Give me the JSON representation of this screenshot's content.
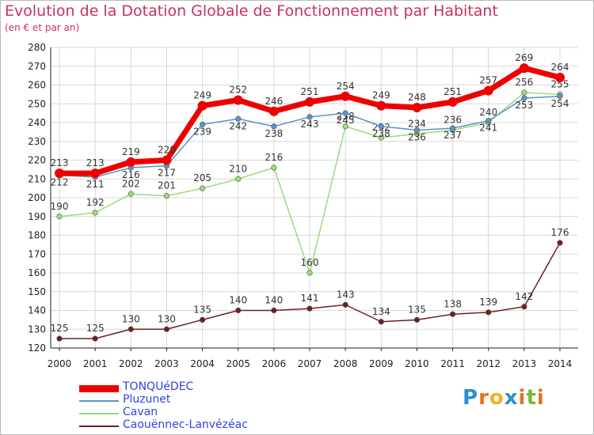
{
  "title": "Evolution de la Dotation Globale de Fonctionnement par Habitant",
  "subtitle": "(en € et par an)",
  "logo_text": "Proxiti",
  "colors": {
    "title": "#c8325a",
    "axis": "#222222",
    "grid": "#d8d8d8",
    "legend_text": "#3344dd",
    "logo": [
      "#2a8fd4",
      "#e8701e",
      "#f2b01e",
      "#2a8fd4",
      "#e8701e",
      "#7ab830",
      "#e8701e"
    ]
  },
  "chart_data": {
    "type": "line",
    "title": "Evolution de la Dotation Globale de Fonctionnement par Habitant",
    "subtitle": "(en € et par an)",
    "xlabel": "",
    "ylabel": "",
    "ylim": [
      120,
      280
    ],
    "ytick_step": 10,
    "grid": true,
    "legend_position": "bottom-left",
    "categories": [
      "2000",
      "2001",
      "2002",
      "2003",
      "2004",
      "2005",
      "2006",
      "2007",
      "2008",
      "2009",
      "2010",
      "2011",
      "2012",
      "2013",
      "2014"
    ],
    "series": [
      {
        "name": "Caouënnec-Lanvézéac",
        "color": "#6e1f22",
        "values": [
          125,
          125,
          130,
          130,
          135,
          140,
          140,
          141,
          143,
          134,
          135,
          138,
          139,
          142,
          176
        ]
      },
      {
        "name": "Cavan",
        "color": "#99dd77",
        "values": [
          190,
          192,
          202,
          201,
          205,
          210,
          216,
          160,
          238,
          232,
          234,
          236,
          240,
          256,
          255
        ]
      },
      {
        "name": "Pluzunet",
        "color": "#5b93cc",
        "values": [
          212,
          211,
          216,
          217,
          239,
          242,
          238,
          243,
          245,
          238,
          236,
          237,
          241,
          253,
          254
        ]
      },
      {
        "name": "TONQUéDEC",
        "color": "#ee0000",
        "values": [
          213,
          213,
          219,
          220,
          249,
          252,
          246,
          251,
          254,
          249,
          248,
          251,
          257,
          269,
          264
        ]
      }
    ]
  }
}
